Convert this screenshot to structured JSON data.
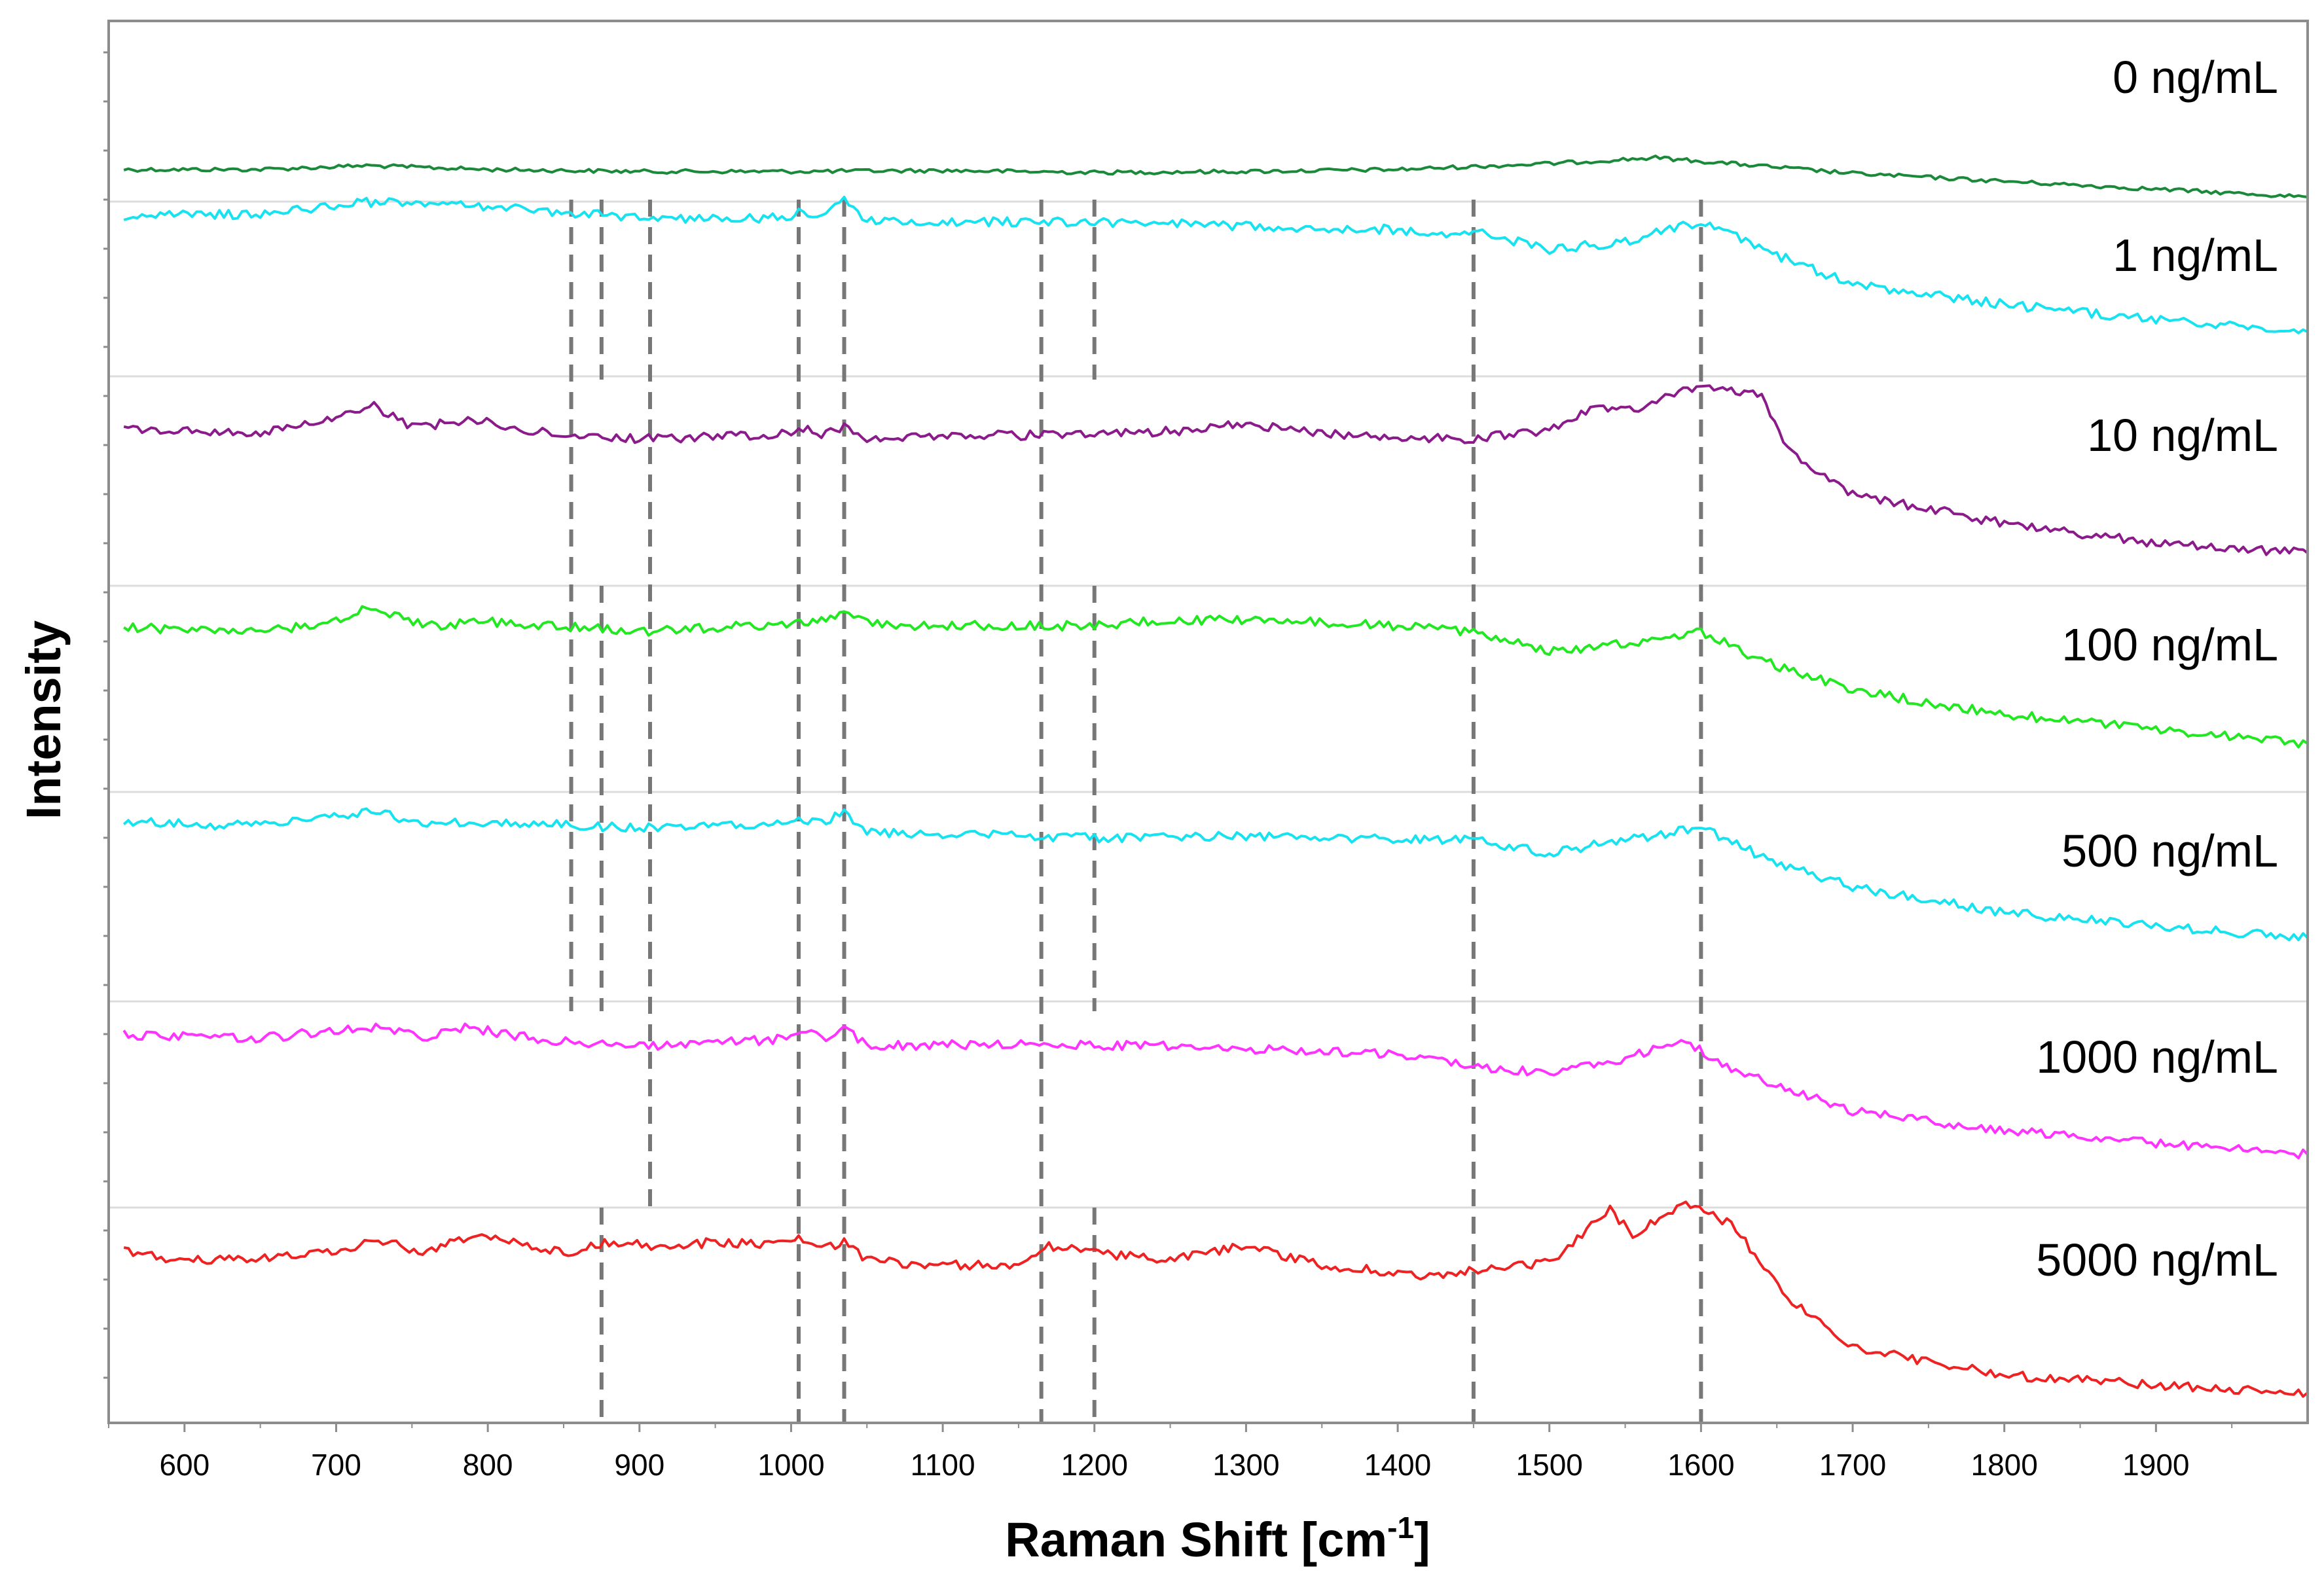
{
  "chart_data": {
    "type": "line",
    "title": "",
    "xlabel": "Raman Shift [cm",
    "xlabel_sup": "-1",
    "xlabel_close": "]",
    "ylabel": "Intensity",
    "xlim": [
      550,
      2000
    ],
    "x_ticks": [
      "600",
      "700",
      "800",
      "900",
      "1000",
      "1100",
      "1200",
      "1300",
      "1400",
      "1500",
      "1600",
      "1700",
      "1800",
      "1900"
    ],
    "x_tick_values": [
      600,
      700,
      800,
      900,
      1000,
      1100,
      1200,
      1300,
      1400,
      1500,
      1600,
      1700,
      1800,
      1900
    ],
    "grid": "horizontal separators between spectra",
    "reference_lines_cm-1": [
      855,
      875,
      907,
      1005,
      1035,
      1165,
      1200,
      1450,
      1600
    ],
    "series": [
      {
        "name": "0 ng/mL",
        "label": "0 ng/mL",
        "color": "#1a8a3a",
        "x": [
          560,
          650,
          720,
          800,
          900,
          1000,
          1100,
          1200,
          1300,
          1400,
          1500,
          1570,
          1620,
          1700,
          1800,
          1900,
          2000
        ],
        "y": [
          0.2,
          0.2,
          0.4,
          0.2,
          0.1,
          0.1,
          0.15,
          0.05,
          0.1,
          0.2,
          0.5,
          0.8,
          0.5,
          0.0,
          -0.4,
          -0.8,
          -1.2
        ]
      },
      {
        "name": "1 ng/mL",
        "label": "1 ng/mL",
        "color": "#17e3f0",
        "x": [
          560,
          650,
          720,
          800,
          900,
          1000,
          1005,
          1020,
          1035,
          1050,
          1100,
          1200,
          1300,
          1400,
          1420,
          1450,
          1500,
          1550,
          1600,
          1650,
          1700,
          1800,
          1900,
          2000
        ],
        "y": [
          0.5,
          0.6,
          1.2,
          1.0,
          0.4,
          0.4,
          0.8,
          0.4,
          1.5,
          0.2,
          0.2,
          0.2,
          0.0,
          -0.2,
          -0.5,
          -0.3,
          -1.2,
          -0.8,
          0.2,
          -1.5,
          -3.0,
          -4.0,
          -4.8,
          -5.4
        ]
      },
      {
        "name": "10 ng/mL",
        "label": "10 ng/mL",
        "color": "#8b1a8b",
        "x": [
          560,
          650,
          700,
          725,
          750,
          790,
          830,
          900,
          1000,
          1005,
          1020,
          1035,
          1050,
          1100,
          1200,
          1250,
          1300,
          1350,
          1400,
          1450,
          1500,
          1530,
          1550,
          1600,
          1620,
          1640,
          1660,
          1700,
          1800,
          1900,
          2000
        ],
        "y": [
          0.3,
          0.1,
          0.8,
          1.5,
          0.4,
          0.8,
          0.2,
          -0.2,
          0.1,
          0.4,
          0.0,
          0.4,
          -0.2,
          0.0,
          0.0,
          0.2,
          0.6,
          0.1,
          -0.1,
          -0.2,
          0.3,
          1.4,
          1.2,
          2.5,
          2.2,
          2.0,
          -1.0,
          -3.0,
          -4.5,
          -5.5,
          -6.0
        ]
      },
      {
        "name": "100 ng/mL",
        "label": "100 ng/mL",
        "color": "#22e822",
        "x": [
          560,
          650,
          700,
          720,
          760,
          800,
          900,
          1000,
          1020,
          1035,
          1060,
          1100,
          1200,
          1250,
          1300,
          1400,
          1450,
          1500,
          1550,
          1600,
          1640,
          1700,
          1800,
          1900,
          2000
        ],
        "y": [
          0.2,
          0.0,
          0.5,
          1.2,
          0.3,
          0.5,
          0.0,
          0.4,
          0.5,
          1.0,
          0.3,
          0.3,
          0.3,
          0.6,
          0.6,
          0.3,
          0.0,
          -1.0,
          -0.6,
          0.0,
          -1.5,
          -3.0,
          -4.2,
          -5.0,
          -5.7
        ]
      },
      {
        "name": "500 ng/mL",
        "label": "500 ng/mL",
        "color": "#17e3f0",
        "x": [
          560,
          650,
          720,
          760,
          800,
          900,
          1000,
          1005,
          1020,
          1035,
          1050,
          1100,
          1200,
          1300,
          1400,
          1450,
          1500,
          1550,
          1600,
          1650,
          1700,
          1800,
          1900,
          2000
        ],
        "y": [
          0.3,
          0.1,
          0.8,
          0.3,
          0.3,
          0.0,
          0.3,
          0.5,
          0.2,
          0.8,
          -0.2,
          -0.3,
          -0.5,
          -0.4,
          -0.6,
          -0.6,
          -1.3,
          -0.6,
          0.0,
          -1.8,
          -3.0,
          -4.3,
          -5.0,
          -5.6
        ]
      },
      {
        "name": "1000 ng/mL",
        "label": "1000 ng/mL",
        "color": "#ff33ff",
        "x": [
          560,
          650,
          720,
          760,
          785,
          830,
          900,
          1000,
          1010,
          1020,
          1035,
          1050,
          1100,
          1200,
          1300,
          1400,
          1450,
          1500,
          1550,
          1590,
          1620,
          1700,
          1800,
          1900,
          2000
        ],
        "y": [
          0.3,
          0.1,
          0.7,
          0.2,
          0.7,
          0.1,
          -0.3,
          0.1,
          0.4,
          0.1,
          0.7,
          -0.3,
          -0.2,
          -0.2,
          -0.4,
          -0.7,
          -1.3,
          -1.7,
          -0.9,
          0.0,
          -1.5,
          -3.6,
          -4.6,
          -5.2,
          -5.8
        ]
      },
      {
        "name": "5000 ng/mL",
        "label": "5000 ng/mL",
        "color": "#ee2222",
        "x": [
          560,
          600,
          650,
          700,
          725,
          760,
          790,
          850,
          880,
          920,
          950,
          1000,
          1005,
          1020,
          1035,
          1050,
          1100,
          1150,
          1170,
          1200,
          1250,
          1300,
          1350,
          1400,
          1430,
          1450,
          1500,
          1540,
          1555,
          1590,
          1620,
          1660,
          1700,
          1800,
          1900,
          2000
        ],
        "y": [
          0.2,
          -0.4,
          -0.2,
          0.0,
          0.8,
          0.0,
          1.0,
          0.0,
          0.6,
          0.3,
          0.6,
          0.4,
          0.7,
          0.2,
          0.6,
          -0.4,
          -0.6,
          -0.6,
          0.4,
          0.0,
          -0.3,
          0.4,
          -0.6,
          -1.0,
          -1.2,
          -0.8,
          -0.5,
          2.2,
          1.0,
          2.6,
          1.5,
          -2.5,
          -4.8,
          -6.2,
          -6.7,
          -7.1
        ]
      }
    ]
  }
}
